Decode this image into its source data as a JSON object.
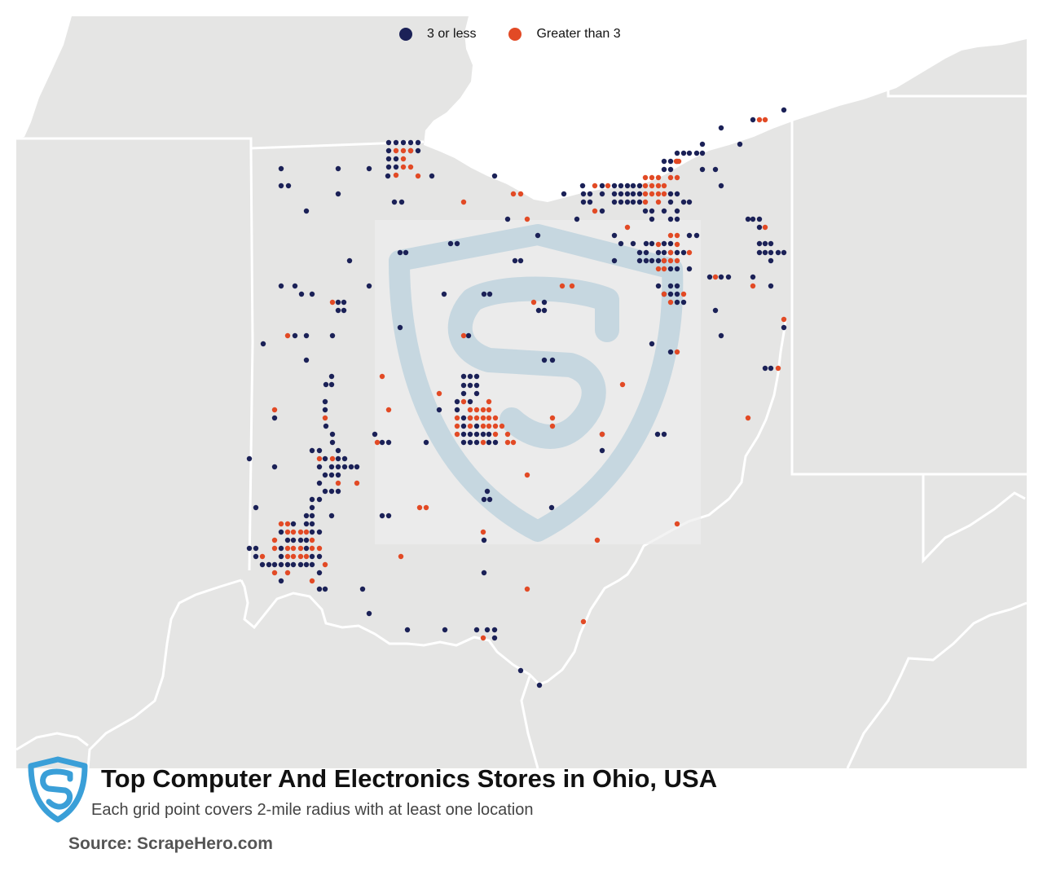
{
  "legend": {
    "items": [
      {
        "label": "3 or less",
        "color": "#1b2157"
      },
      {
        "label": "Greater than 3",
        "color": "#e24a25"
      }
    ]
  },
  "title": "Top Computer And Electronics Stores in Ohio, USA",
  "subtitle": "Each grid point covers 2-mile radius with at least one location",
  "source": "Source: ScrapeHero.com",
  "logo_icon": "scrapehero-shield-icon",
  "watermark_icon": "scrapehero-watermark-icon",
  "colors": {
    "land": "#e5e5e4",
    "water": "#ffffff",
    "border": "#ffffff",
    "low": "#1b2157",
    "high": "#e24a25",
    "brand": "#3a9fd8"
  }
}
